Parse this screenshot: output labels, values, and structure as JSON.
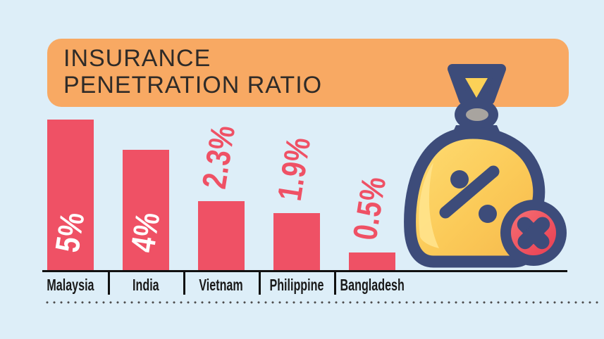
{
  "header": {
    "line1": "INSURANCE",
    "line2": "PENETRATION RATIO"
  },
  "chart_data": {
    "type": "bar",
    "title": "INSURANCE PENETRATION RATIO",
    "categories": [
      "Malaysia",
      "India",
      "Vietnam",
      "Philippine",
      "Bangladesh"
    ],
    "values": [
      5,
      4,
      2.3,
      1.9,
      0.5
    ],
    "value_labels": [
      "5%",
      "4%",
      "2.3%",
      "1.9%",
      "0.5%"
    ],
    "unit": "%",
    "ylim": [
      0,
      5
    ],
    "xlabel": "",
    "ylabel": "",
    "grid": false,
    "legend": false,
    "bar_color": "#ef5165",
    "value_label_inside_color": "#ffffff",
    "value_label_outside_color": "#ef5165"
  },
  "colors": {
    "background": "#ddeef8",
    "banner": "#f8a963",
    "title_text": "#2f2b28",
    "bar": "#ef5165",
    "label_text": "#191919",
    "axis": "#111111",
    "dots": "#4d4d4d",
    "bag_navy": "#3d4c7a",
    "bag_yellow": "#fccf5f",
    "bag_yellow_dark": "#f6b84c",
    "bag_highlight": "#ffe38c",
    "knot_gray": "#a8a49f",
    "badge_red": "#ef5165"
  },
  "icons": {
    "money_bag": "money-bag-icon",
    "percent": "percent-icon",
    "cancel": "cancel-icon"
  }
}
